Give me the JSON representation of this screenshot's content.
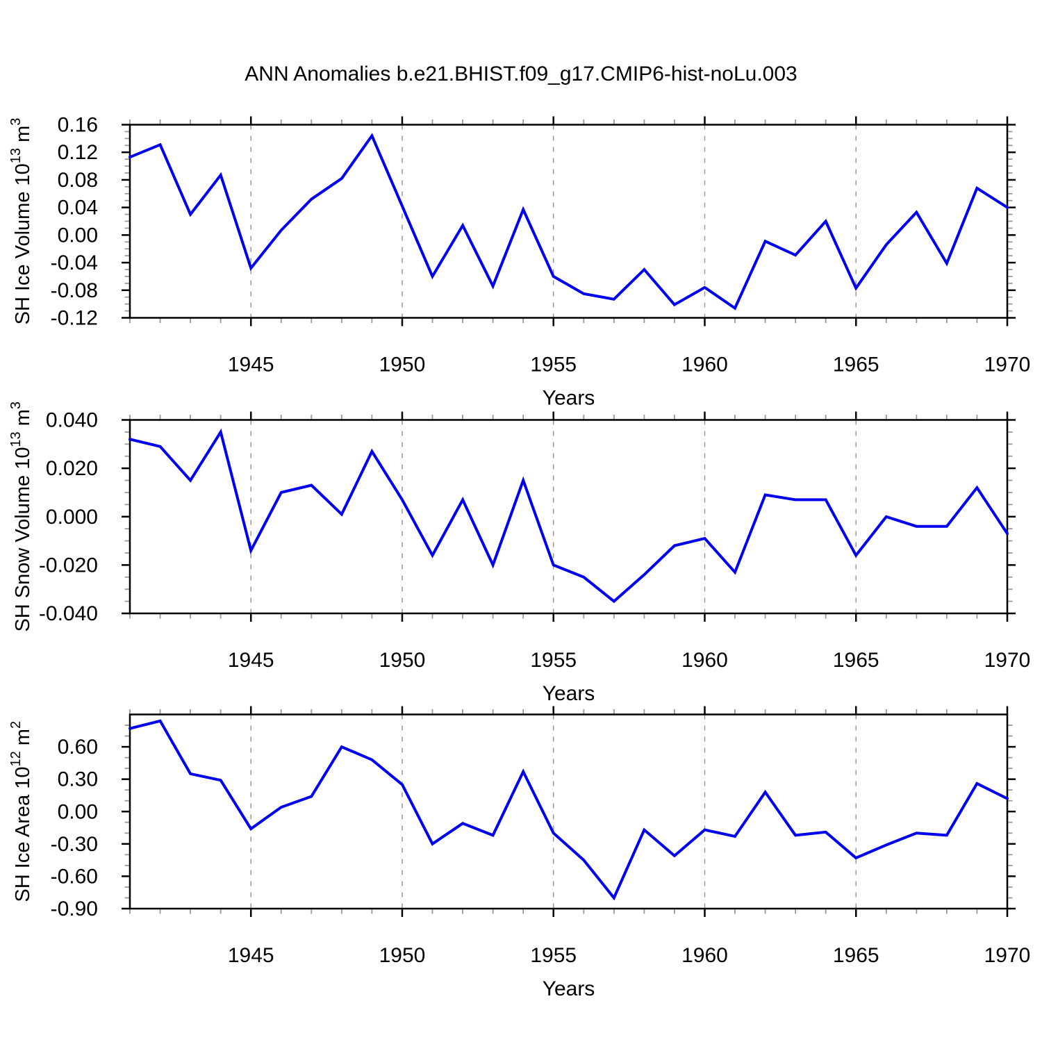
{
  "title": "ANN Anomalies b.e21.BHIST.f09_g17.CMIP6-hist-noLu.003",
  "colors": {
    "line": "#0000EE",
    "frame": "#000000",
    "major_tick": "#000000",
    "minor_tick": "#999999",
    "gridline": "#999999",
    "background": "#FFFFFF",
    "text": "#000000"
  },
  "x_axis": {
    "label": "Years",
    "start_year": 1941,
    "end_year": 1970,
    "major_ticks": [
      1945,
      1950,
      1955,
      1960,
      1965,
      1970
    ],
    "minor_step_years": 1,
    "gridlines": [
      1945,
      1950,
      1955,
      1960,
      1965
    ]
  },
  "chart_data": [
    {
      "type": "line",
      "name": "sh-ice-volume",
      "ylabel_parts": [
        {
          "t": "SH Ice Volume 10"
        },
        {
          "t": "13",
          "sup": true
        },
        {
          "t": " m"
        },
        {
          "t": "3",
          "sup": true
        }
      ],
      "ylim": [
        -0.12,
        0.16
      ],
      "ymajor_step": 0.04,
      "yminor_step": 0.01,
      "ytick_labels": [
        {
          "v": 0.16,
          "t": "0.16"
        },
        {
          "v": 0.12,
          "t": "0.12"
        },
        {
          "v": 0.08,
          "t": "0.08"
        },
        {
          "v": 0.04,
          "t": "0.04"
        },
        {
          "v": 0.0,
          "t": "0.00"
        },
        {
          "v": -0.04,
          "t": "-0.04"
        },
        {
          "v": -0.08,
          "t": "-0.08"
        },
        {
          "v": -0.12,
          "t": "-0.12"
        }
      ],
      "years": [
        1941,
        1942,
        1943,
        1944,
        1945,
        1946,
        1947,
        1948,
        1949,
        1950,
        1951,
        1952,
        1953,
        1954,
        1955,
        1956,
        1957,
        1958,
        1959,
        1960,
        1961,
        1962,
        1963,
        1964,
        1965,
        1966,
        1967,
        1968,
        1969,
        1970
      ],
      "values": [
        0.113,
        0.131,
        0.03,
        0.087,
        -0.048,
        0.007,
        0.052,
        0.082,
        0.144,
        0.042,
        -0.06,
        0.014,
        -0.074,
        0.037,
        -0.06,
        -0.085,
        -0.093,
        -0.05,
        -0.101,
        -0.076,
        -0.106,
        -0.009,
        -0.029,
        0.02,
        -0.077,
        -0.014,
        0.033,
        -0.041,
        0.068,
        0.04
      ]
    },
    {
      "type": "line",
      "name": "sh-snow-volume",
      "ylabel_parts": [
        {
          "t": "SH Snow Volume 10"
        },
        {
          "t": "13",
          "sup": true
        },
        {
          "t": " m"
        },
        {
          "t": "3",
          "sup": true
        }
      ],
      "ylim": [
        -0.04,
        0.04
      ],
      "ymajor_step": 0.02,
      "yminor_step": 0.005,
      "ytick_labels": [
        {
          "v": 0.04,
          "t": "0.040"
        },
        {
          "v": 0.02,
          "t": "0.020"
        },
        {
          "v": 0.0,
          "t": "0.000"
        },
        {
          "v": -0.02,
          "t": "-0.020"
        },
        {
          "v": -0.04,
          "t": "-0.040"
        }
      ],
      "years": [
        1941,
        1942,
        1943,
        1944,
        1945,
        1946,
        1947,
        1948,
        1949,
        1950,
        1951,
        1952,
        1953,
        1954,
        1955,
        1956,
        1957,
        1958,
        1959,
        1960,
        1961,
        1962,
        1963,
        1964,
        1965,
        1966,
        1967,
        1968,
        1969,
        1970
      ],
      "values": [
        0.032,
        0.029,
        0.015,
        0.035,
        -0.014,
        0.01,
        0.013,
        0.001,
        0.027,
        0.007,
        -0.016,
        0.007,
        -0.02,
        0.015,
        -0.02,
        -0.025,
        -0.035,
        -0.024,
        -0.012,
        -0.009,
        -0.023,
        0.009,
        0.007,
        0.007,
        -0.016,
        0.0,
        -0.004,
        -0.004,
        0.012,
        -0.007
      ]
    },
    {
      "type": "line",
      "name": "sh-ice-area",
      "ylabel_parts": [
        {
          "t": "SH Ice Area 10"
        },
        {
          "t": "12",
          "sup": true
        },
        {
          "t": " m"
        },
        {
          "t": "2",
          "sup": true
        }
      ],
      "ylim": [
        -0.9,
        0.9
      ],
      "ymajor_step": 0.3,
      "yminor_step": 0.1,
      "ytick_labels": [
        {
          "v": 0.6,
          "t": "0.60"
        },
        {
          "v": 0.3,
          "t": "0.30"
        },
        {
          "v": 0.0,
          "t": "0.00"
        },
        {
          "v": -0.3,
          "t": "-0.30"
        },
        {
          "v": -0.6,
          "t": "-0.60"
        },
        {
          "v": -0.9,
          "t": "-0.90"
        }
      ],
      "years": [
        1941,
        1942,
        1943,
        1944,
        1945,
        1946,
        1947,
        1948,
        1949,
        1950,
        1951,
        1952,
        1953,
        1954,
        1955,
        1956,
        1957,
        1958,
        1959,
        1960,
        1961,
        1962,
        1963,
        1964,
        1965,
        1966,
        1967,
        1968,
        1969,
        1970
      ],
      "values": [
        0.77,
        0.84,
        0.35,
        0.29,
        -0.16,
        0.04,
        0.14,
        0.6,
        0.48,
        0.25,
        -0.3,
        -0.11,
        -0.22,
        0.37,
        -0.2,
        -0.45,
        -0.8,
        -0.17,
        -0.41,
        -0.17,
        -0.23,
        0.18,
        -0.22,
        -0.19,
        -0.43,
        -0.31,
        -0.2,
        -0.22,
        0.26,
        0.12
      ]
    }
  ]
}
